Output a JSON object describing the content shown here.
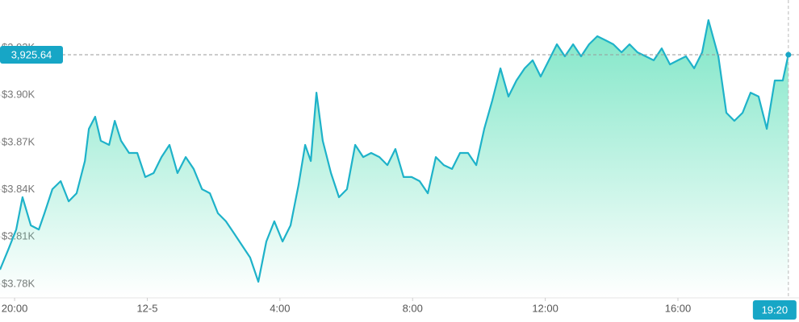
{
  "chart_data": {
    "type": "area",
    "x": [
      -0.44,
      -0.19,
      0.05,
      0.24,
      0.49,
      0.73,
      0.9,
      1.14,
      1.39,
      1.63,
      1.87,
      2.12,
      2.24,
      2.43,
      2.6,
      2.85,
      3.02,
      3.21,
      3.45,
      3.7,
      3.94,
      4.19,
      4.43,
      4.67,
      4.91,
      5.16,
      5.4,
      5.65,
      5.89,
      6.13,
      6.37,
      6.62,
      6.86,
      7.1,
      7.35,
      7.59,
      7.83,
      8.08,
      8.32,
      8.56,
      8.76,
      8.93,
      9.1,
      9.29,
      9.54,
      9.78,
      10.02,
      10.27,
      10.51,
      10.75,
      11.0,
      11.24,
      11.48,
      11.73,
      11.97,
      12.21,
      12.46,
      12.7,
      12.94,
      13.19,
      13.43,
      13.67,
      13.92,
      14.16,
      14.4,
      14.65,
      14.89,
      15.13,
      15.38,
      15.62,
      15.86,
      16.11,
      16.35,
      16.59,
      16.84,
      17.08,
      17.32,
      17.57,
      17.81,
      18.05,
      18.3,
      18.54,
      18.78,
      19.03,
      19.27,
      19.51,
      19.76,
      20.0,
      20.24,
      20.49,
      20.73,
      20.92,
      21.22,
      21.46,
      21.7,
      21.95,
      22.19,
      22.43,
      22.68,
      22.92,
      23.16,
      23.33
    ],
    "series": [
      {
        "color": "#1eb2c9",
        "fill": "#5fe0b9",
        "values": [
          3789.2,
          3802.0,
          3814.7,
          3835.2,
          3817.3,
          3814.7,
          3825.0,
          3840.3,
          3845.4,
          3832.6,
          3837.7,
          3858.2,
          3878.6,
          3886.3,
          3871.0,
          3868.4,
          3883.7,
          3871.0,
          3863.3,
          3863.3,
          3848.0,
          3850.5,
          3860.7,
          3868.4,
          3850.5,
          3860.7,
          3853.1,
          3840.3,
          3837.7,
          3825.0,
          3819.9,
          3812.2,
          3804.5,
          3796.9,
          3781.5,
          3807.1,
          3819.9,
          3807.1,
          3817.3,
          3842.9,
          3868.4,
          3858.2,
          3901.6,
          3871.0,
          3850.5,
          3835.2,
          3840.3,
          3868.4,
          3860.7,
          3863.3,
          3860.7,
          3855.6,
          3865.8,
          3848.0,
          3848.0,
          3845.4,
          3837.7,
          3860.7,
          3855.6,
          3853.1,
          3863.3,
          3863.3,
          3855.6,
          3878.6,
          3896.5,
          3917.0,
          3899.1,
          3909.3,
          3917.0,
          3922.1,
          3911.8,
          3922.1,
          3932.3,
          3924.6,
          3932.3,
          3924.6,
          3932.3,
          3937.4,
          3934.9,
          3932.3,
          3927.2,
          3932.3,
          3927.2,
          3924.6,
          3922.1,
          3929.7,
          3919.5,
          3922.1,
          3924.6,
          3917.0,
          3927.2,
          3947.6,
          3924.6,
          3888.8,
          3883.7,
          3888.8,
          3901.6,
          3899.1,
          3878.6,
          3909.3,
          3909.3,
          3925.64
        ]
      }
    ],
    "xlim": [
      -0.44,
      23.65
    ],
    "ylim": [
      3771.3,
      3960.4
    ],
    "xticks": [
      {
        "value": 0,
        "label": "20:00"
      },
      {
        "value": 4,
        "label": "12-5"
      },
      {
        "value": 8,
        "label": "4:00"
      },
      {
        "value": 12,
        "label": "8:00"
      },
      {
        "value": 16,
        "label": "12:00"
      },
      {
        "value": 20,
        "label": "16:00"
      }
    ],
    "yticks": [
      {
        "value": 3780,
        "label": "$3.78K"
      },
      {
        "value": 3810,
        "label": "$3.81K"
      },
      {
        "value": 3840,
        "label": "$3.84K"
      },
      {
        "value": 3870,
        "label": "$3.87K"
      },
      {
        "value": 3900,
        "label": "$3.90K"
      },
      {
        "value": 3930,
        "label": "$3.93K"
      }
    ],
    "crosshair": {
      "color": "#17a6c6",
      "x": {
        "value": 23.33,
        "label": "19:20"
      },
      "y": {
        "value": 3925.64,
        "label": "3,925.64"
      }
    }
  }
}
